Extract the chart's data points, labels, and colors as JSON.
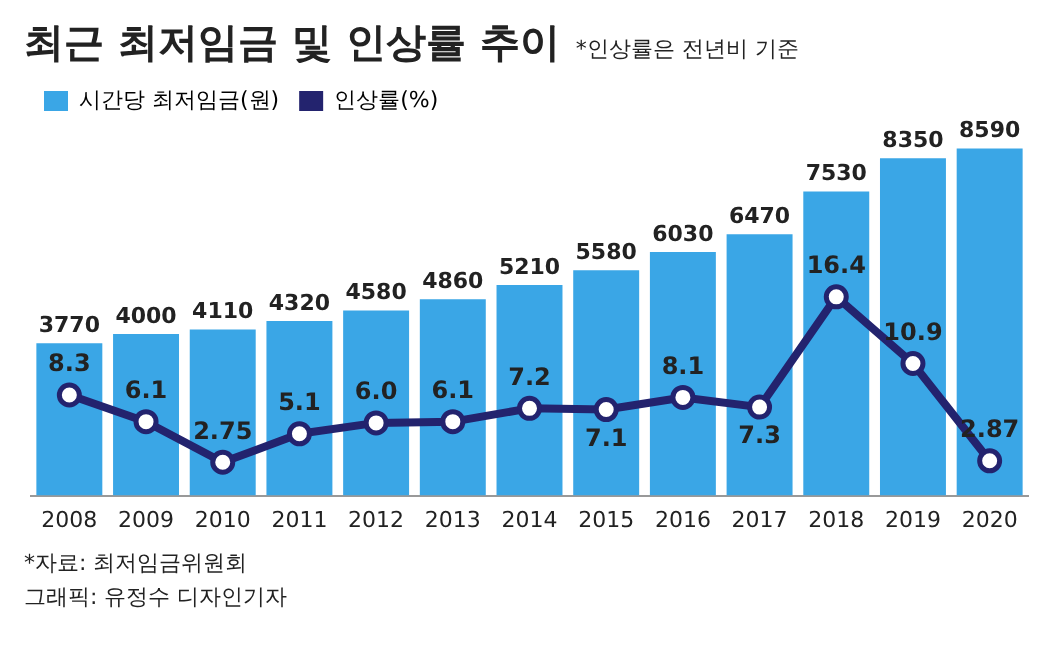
{
  "chart_data": {
    "type": "bar",
    "title": "최근 최저임금 및 인상률 추이",
    "subtitle": "*인상률은 전년비 기준",
    "categories": [
      "2008",
      "2009",
      "2010",
      "2011",
      "2012",
      "2013",
      "2014",
      "2015",
      "2016",
      "2017",
      "2018",
      "2019",
      "2020"
    ],
    "series": [
      {
        "name": "시간당 최저임금(원)",
        "color": "#3aa6e6",
        "values": [
          3770,
          4000,
          4110,
          4320,
          4580,
          4860,
          5210,
          5580,
          6030,
          6470,
          7530,
          8350,
          8590
        ]
      },
      {
        "name": "인상률(%)",
        "type": "line",
        "axis": "y2",
        "color": "#23236e",
        "values": [
          8.3,
          6.1,
          2.75,
          5.1,
          6.0,
          6.1,
          7.2,
          7.1,
          8.1,
          7.3,
          16.4,
          10.9,
          2.87
        ],
        "value_labels": [
          "8.3",
          "6.1",
          "2.75",
          "5.1",
          "6.0",
          "6.1",
          "7.2",
          "7.1",
          "8.1",
          "7.3",
          "16.4",
          "10.9",
          "2.87"
        ]
      }
    ],
    "data_labels": true,
    "legend": "top left",
    "grid": false,
    "tick_labels": "x",
    "marker": "circle",
    "line_style": "solid",
    "annotations": [
      "*자료: 최저임금위원회",
      "그래픽: 유정수 디자인기자"
    ]
  }
}
